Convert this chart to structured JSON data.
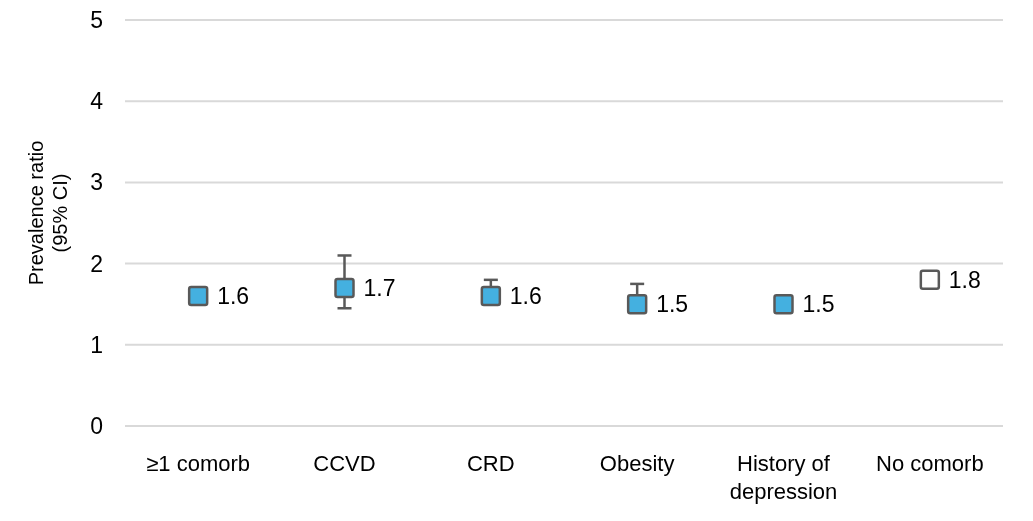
{
  "chart_data": {
    "type": "scatter",
    "ylabel": "Prevalence ratio\n(95% CI)",
    "categories": [
      "≥1 comorb",
      "CCVD",
      "CRD",
      "Obesity",
      "History of depression",
      "No comorb"
    ],
    "series": [
      {
        "values": [
          1.6,
          1.7,
          1.6,
          1.5,
          1.5,
          1.8
        ],
        "colors": [
          "#44b0e0",
          "#44b0e0",
          "#44b0e0",
          "#44b0e0",
          "#44b0e0",
          "#ffffff"
        ],
        "errors": [
          null,
          [
            1.45,
            2.1
          ],
          [
            1.5,
            1.8
          ],
          [
            1.4,
            1.75
          ],
          null,
          null
        ]
      }
    ],
    "marker": "square",
    "data_labels": true,
    "ylim": [
      0,
      5
    ],
    "yticks": [
      0,
      1,
      2,
      3,
      4,
      5
    ],
    "grid": "y"
  }
}
